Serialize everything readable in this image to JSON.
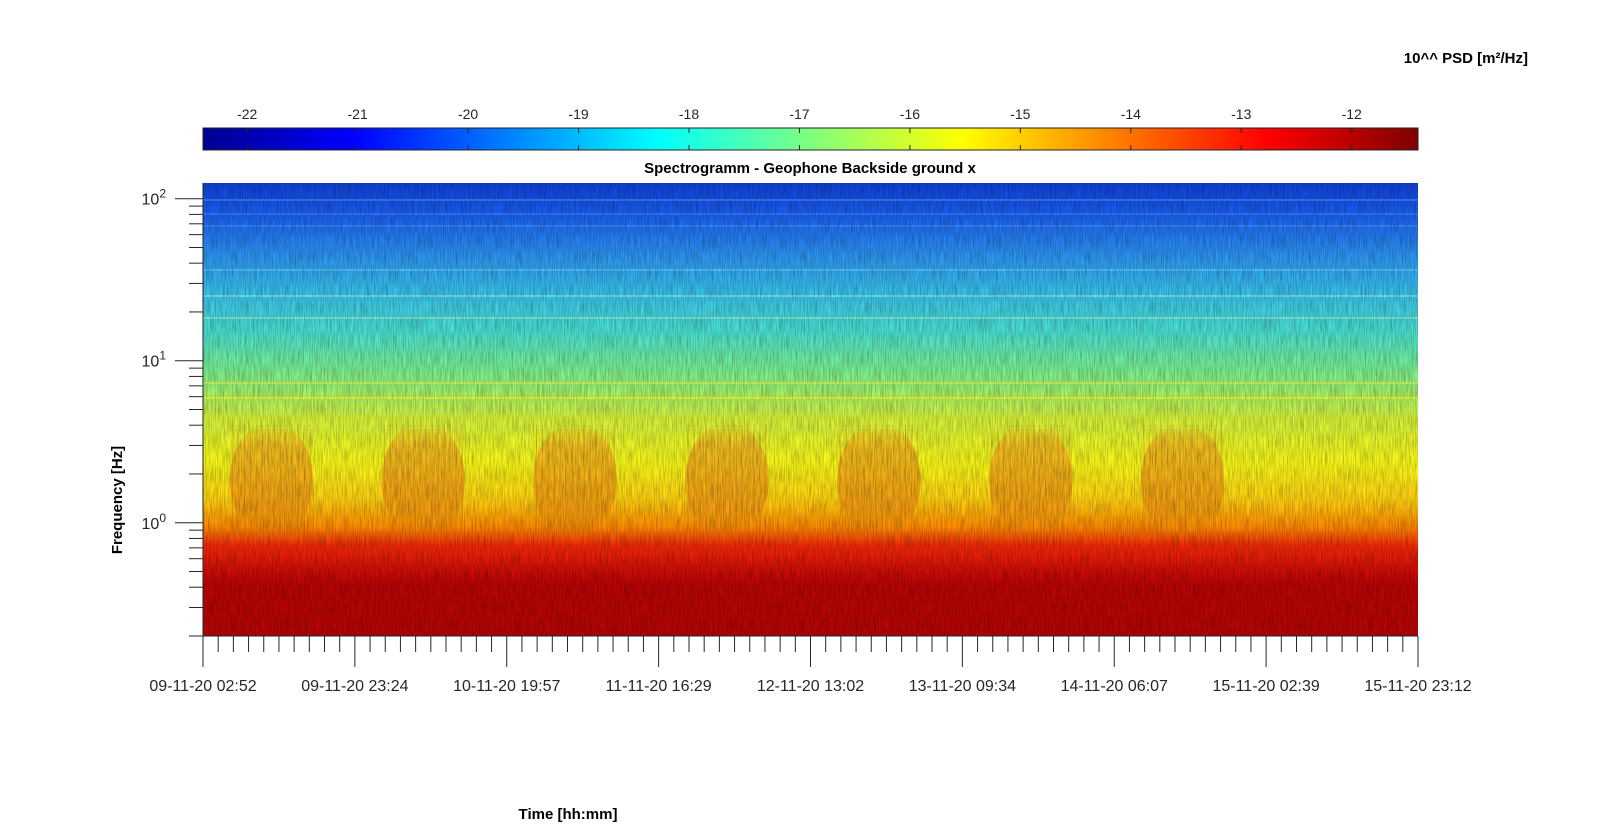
{
  "chart_data": {
    "type": "heatmap",
    "title": "Spectrogramm - Geophone Backside ground x",
    "xlabel": "Time [hh:mm]",
    "ylabel": "Frequency [Hz]",
    "yscale": "log",
    "ylim": [
      0.2,
      125
    ],
    "y_ticks": [
      {
        "base": "10",
        "exp": "0",
        "value": 1
      },
      {
        "base": "10",
        "exp": "1",
        "value": 10
      },
      {
        "base": "10",
        "exp": "2",
        "value": 100
      }
    ],
    "x_tick_labels": [
      "09-11-20 02:52",
      "09-11-20 23:24",
      "10-11-20 19:57",
      "11-11-20 16:29",
      "12-11-20 13:02",
      "13-11-20 09:34",
      "14-11-20 06:07",
      "15-11-20 02:39",
      "15-11-20 23:12"
    ],
    "colorbar": {
      "label": "10^^ PSD [m²/Hz]",
      "colormap": "jet",
      "range": [
        -22.4,
        -11.4
      ],
      "ticks": [
        "-22",
        "-21",
        "-20",
        "-19",
        "-18",
        "-17",
        "-16",
        "-15",
        "-14",
        "-13",
        "-12"
      ]
    },
    "diurnal_activity_days": 7,
    "grid": false
  }
}
